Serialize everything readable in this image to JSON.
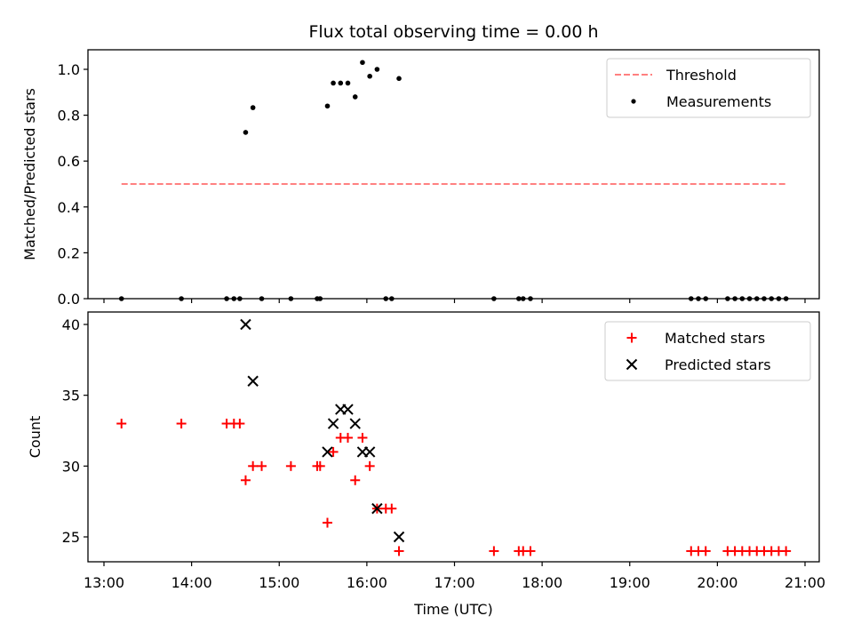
{
  "chart_data": [
    {
      "type": "scatter",
      "title": "Flux total observing time = 0.00 h",
      "ylabel": "Matched/Predicted stars",
      "xlim": [
        "13:00",
        "21:00"
      ],
      "ylim": [
        0,
        1.08
      ],
      "yticks": [
        "0.0",
        "0.2",
        "0.4",
        "0.6",
        "0.8",
        "1.0"
      ],
      "threshold": {
        "name": "Threshold",
        "value": 0.5,
        "x_range": [
          "13:12",
          "20:48"
        ],
        "color": "#ff8080"
      },
      "series": [
        {
          "name": "Measurements",
          "color": "#000000",
          "points": [
            [
              "13:12",
              0
            ],
            [
              "13:53",
              0
            ],
            [
              "14:24",
              0
            ],
            [
              "14:29",
              0
            ],
            [
              "14:33",
              0
            ],
            [
              "14:37",
              0.725
            ],
            [
              "14:42",
              0.833
            ],
            [
              "14:48",
              0
            ],
            [
              "15:08",
              0
            ],
            [
              "15:26",
              0
            ],
            [
              "15:28",
              0
            ],
            [
              "15:33",
              0.84
            ],
            [
              "15:37",
              0.94
            ],
            [
              "15:42",
              0.94
            ],
            [
              "15:47",
              0.94
            ],
            [
              "15:52",
              0.88
            ],
            [
              "15:57",
              1.03
            ],
            [
              "16:02",
              0.97
            ],
            [
              "16:07",
              1.0
            ],
            [
              "16:13",
              0
            ],
            [
              "16:17",
              0
            ],
            [
              "16:22",
              0.96
            ],
            [
              "17:27",
              0
            ],
            [
              "17:44",
              0
            ],
            [
              "17:47",
              0
            ],
            [
              "17:52",
              0
            ],
            [
              "19:42",
              0
            ],
            [
              "19:47",
              0
            ],
            [
              "19:52",
              0
            ],
            [
              "20:07",
              0
            ],
            [
              "20:12",
              0
            ],
            [
              "20:17",
              0
            ],
            [
              "20:22",
              0
            ],
            [
              "20:27",
              0
            ],
            [
              "20:32",
              0
            ],
            [
              "20:37",
              0
            ],
            [
              "20:42",
              0
            ],
            [
              "20:47",
              0
            ]
          ]
        }
      ]
    },
    {
      "type": "scatter",
      "xlabel": "Time (UTC)",
      "ylabel": "Count",
      "xlim": [
        "13:00",
        "21:00"
      ],
      "ylim": [
        23.3,
        40.9
      ],
      "xticks": [
        "13:00",
        "14:00",
        "15:00",
        "16:00",
        "17:00",
        "18:00",
        "19:00",
        "20:00",
        "21:00"
      ],
      "yticks": [
        "25",
        "30",
        "35",
        "40"
      ],
      "series": [
        {
          "name": "Matched stars",
          "color": "#ff0000",
          "marker": "+",
          "points": [
            [
              "13:12",
              33
            ],
            [
              "13:53",
              33
            ],
            [
              "14:24",
              33
            ],
            [
              "14:29",
              33
            ],
            [
              "14:33",
              33
            ],
            [
              "14:37",
              29
            ],
            [
              "14:42",
              30
            ],
            [
              "14:48",
              30
            ],
            [
              "15:08",
              30
            ],
            [
              "15:26",
              30
            ],
            [
              "15:28",
              30
            ],
            [
              "15:33",
              26
            ],
            [
              "15:37",
              31
            ],
            [
              "15:42",
              32
            ],
            [
              "15:47",
              32
            ],
            [
              "15:52",
              29
            ],
            [
              "15:57",
              32
            ],
            [
              "16:02",
              30
            ],
            [
              "16:07",
              27
            ],
            [
              "16:13",
              27
            ],
            [
              "16:17",
              27
            ],
            [
              "16:22",
              24
            ],
            [
              "17:27",
              24
            ],
            [
              "17:44",
              24
            ],
            [
              "17:47",
              24
            ],
            [
              "17:52",
              24
            ],
            [
              "19:42",
              24
            ],
            [
              "19:47",
              24
            ],
            [
              "19:52",
              24
            ],
            [
              "20:07",
              24
            ],
            [
              "20:12",
              24
            ],
            [
              "20:17",
              24
            ],
            [
              "20:22",
              24
            ],
            [
              "20:27",
              24
            ],
            [
              "20:32",
              24
            ],
            [
              "20:37",
              24
            ],
            [
              "20:42",
              24
            ],
            [
              "20:47",
              24
            ]
          ]
        },
        {
          "name": "Predicted stars",
          "color": "#000000",
          "marker": "x",
          "points": [
            [
              "14:37",
              40
            ],
            [
              "14:42",
              36
            ],
            [
              "15:33",
              31
            ],
            [
              "15:37",
              33
            ],
            [
              "15:42",
              34
            ],
            [
              "15:47",
              34
            ],
            [
              "15:52",
              33
            ],
            [
              "15:57",
              31
            ],
            [
              "16:02",
              31
            ],
            [
              "16:07",
              27
            ],
            [
              "16:22",
              25
            ]
          ]
        }
      ]
    }
  ]
}
